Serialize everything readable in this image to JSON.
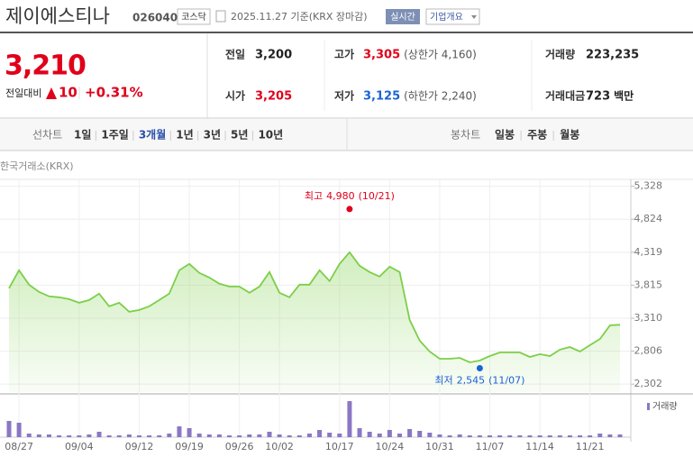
{
  "header": {
    "name": "제이에스티나",
    "code": "026040",
    "market": "코스닥",
    "date": "2025.11.27 기준(KRX 장마감)",
    "realtime": "실시간",
    "overview": "기업개요"
  },
  "quote": {
    "price": "3,210",
    "change_label": "전일대비",
    "change": "10",
    "change_pct": "+0.31%",
    "fields": [
      {
        "label": "전일",
        "value": "3,200"
      },
      {
        "label": "고가",
        "value": "3,305",
        "extra": "(상한가 4,160)"
      },
      {
        "label": "거래량",
        "value": "223,235"
      },
      {
        "label": "시가",
        "value": "3,205"
      },
      {
        "label": "저가",
        "value": "3,125",
        "extra": "(하한가 2,240)"
      },
      {
        "label": "거래대금",
        "value": "723",
        "unit": "백만"
      }
    ]
  },
  "tabs": {
    "line": "선차트",
    "line_periods": [
      "1일",
      "1주일",
      "3개월",
      "1년",
      "3년",
      "5년",
      "10년"
    ],
    "active_period": 2,
    "candle": "봉차트",
    "candle_periods": [
      "일봉",
      "주봉",
      "월봉"
    ]
  },
  "source": "한국거래소(KRX)",
  "chart_data": [
    {
      "type": "line",
      "color": "#7ccf48",
      "categories": [
        null,
        "08/27",
        null,
        null,
        null,
        null,
        null,
        "09/04",
        null,
        null,
        null,
        null,
        null,
        "09/12",
        null,
        null,
        null,
        null,
        "09/19",
        null,
        null,
        null,
        null,
        "09/26",
        null,
        null,
        null,
        "10/02",
        null,
        null,
        null,
        null,
        null,
        "10/17",
        null,
        null,
        null,
        null,
        "10/24",
        null,
        null,
        null,
        null,
        "10/31",
        null,
        null,
        null,
        null,
        "11/07",
        null,
        null,
        null,
        null,
        "11/14",
        null,
        null,
        null,
        null,
        "11/21",
        null,
        null,
        null
      ],
      "values": [
        3768,
        4044,
        3823,
        3713,
        3644,
        3630,
        3602,
        3547,
        3588,
        3685,
        3492,
        3547,
        3409,
        3436,
        3492,
        3588,
        3685,
        4044,
        4140,
        4002,
        3933,
        3837,
        3795,
        3795,
        3699,
        3795,
        4016,
        3699,
        3630,
        3823,
        3823,
        4044,
        3878,
        4140,
        4320,
        4113,
        4016,
        3947,
        4099,
        4016,
        3284,
        2967,
        2801,
        2690,
        2690,
        2704,
        2635,
        2663,
        2732,
        2787,
        2787,
        2787,
        2718,
        2760,
        2732,
        2829,
        2870,
        2801,
        2898,
        2994,
        3201,
        3210
      ],
      "ylim": [
        2180,
        5420
      ],
      "yticks": [
        {
          "value": 5328,
          "label": "5,328"
        },
        {
          "value": 4824,
          "label": "4,824"
        },
        {
          "value": 4319,
          "label": "4,319"
        },
        {
          "value": 3815,
          "label": "3,815"
        },
        {
          "value": 3310,
          "label": "3,310"
        },
        {
          "value": 2806,
          "label": "2,806"
        },
        {
          "value": 2302,
          "label": "2,302"
        }
      ],
      "grid": true,
      "annotations": [
        {
          "label": "최고",
          "value": 4980,
          "value_label": "4,980",
          "date": "(10/21)",
          "color": "#e0001b"
        },
        {
          "label": "최저",
          "value": 2545,
          "value_label": "2,545",
          "date": "(11/07)",
          "color": "#1a62d6"
        }
      ]
    },
    {
      "type": "bar",
      "name": "거래량",
      "color": "#8b77c4",
      "values": [
        18,
        16,
        4,
        3,
        3,
        2,
        2,
        2,
        3,
        6,
        2,
        2,
        3,
        2,
        2,
        2,
        4,
        12,
        10,
        4,
        3,
        3,
        2,
        2,
        3,
        3,
        6,
        3,
        2,
        2,
        4,
        8,
        5,
        4,
        40,
        10,
        6,
        4,
        8,
        4,
        9,
        7,
        5,
        3,
        2,
        3,
        2,
        2,
        2,
        2,
        2,
        2,
        2,
        2,
        2,
        2,
        2,
        2,
        2,
        4,
        3,
        3
      ],
      "ylim": [
        0,
        45
      ]
    }
  ]
}
